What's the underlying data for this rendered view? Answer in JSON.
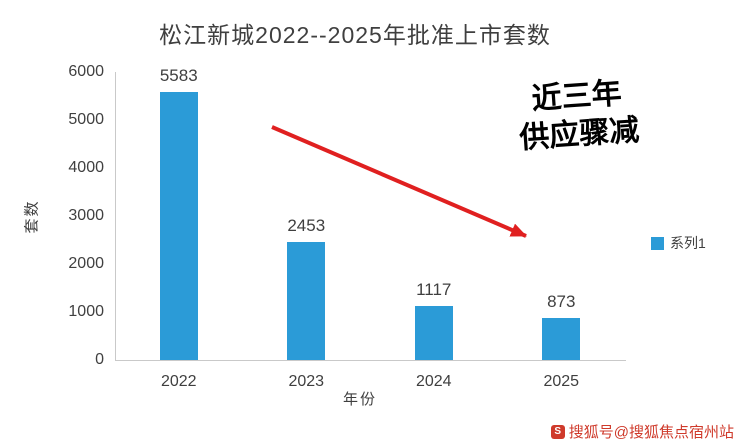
{
  "chart_data": {
    "type": "bar",
    "title": "松江新城2022--2025年批准上市套数",
    "categories": [
      "2022",
      "2023",
      "2024",
      "2025"
    ],
    "values": [
      5583,
      2453,
      1117,
      873
    ],
    "xlabel": "年份",
    "ylabel": "套数",
    "ylim": [
      0,
      6000
    ],
    "yticks": [
      0,
      1000,
      2000,
      3000,
      4000,
      5000,
      6000
    ],
    "grid": false,
    "bar_color": "#2b9bd7",
    "legend_position": "right",
    "legend": [
      {
        "label": "系列1",
        "color": "#2b9bd7"
      }
    ]
  },
  "annotation": {
    "line1": "近三年",
    "line2": "供应骤减",
    "arrow_color": "#e02020"
  },
  "watermark": {
    "text": "搜狐号@搜狐焦点宿州站",
    "color": "#cf3a2b",
    "icon_letter": "S"
  }
}
